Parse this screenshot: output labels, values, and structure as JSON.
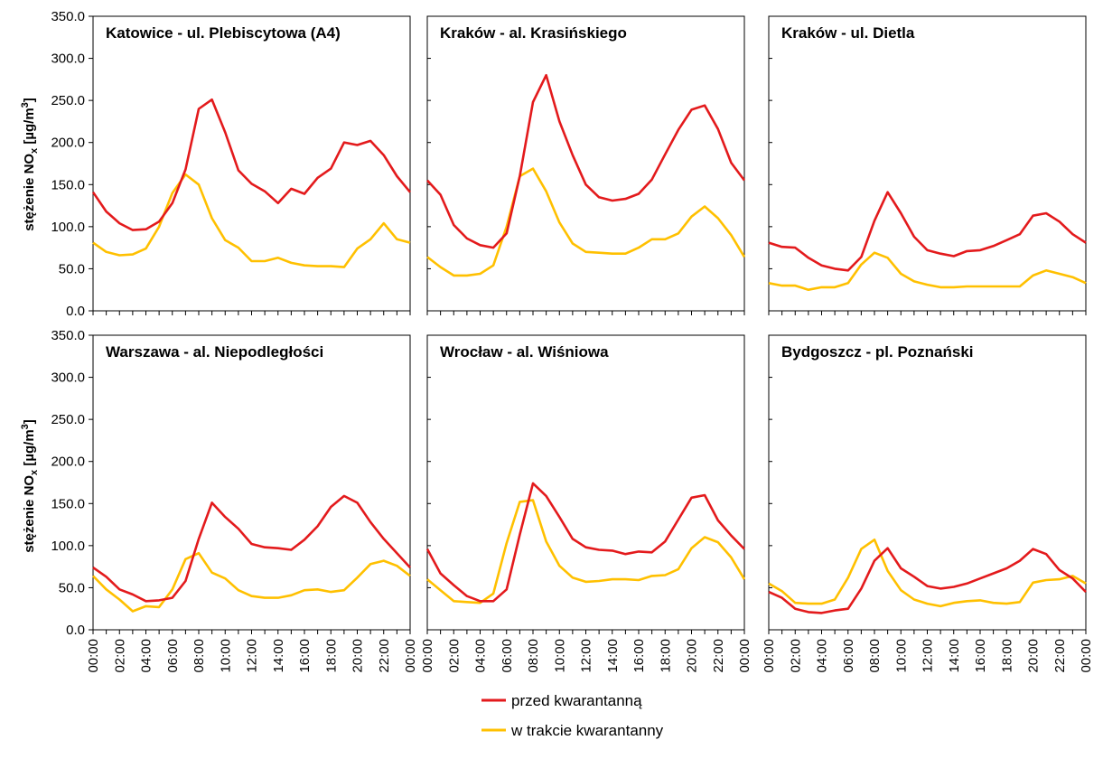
{
  "chart_data": {
    "type": "line",
    "ylim": [
      0,
      350
    ],
    "y_ticks": [
      "0.0",
      "50.0",
      "100.0",
      "150.0",
      "200.0",
      "250.0",
      "300.0",
      "350.0"
    ],
    "x_ticks": [
      "00:00",
      "02:00",
      "04:00",
      "06:00",
      "08:00",
      "10:00",
      "12:00",
      "14:00",
      "16:00",
      "18:00",
      "20:00",
      "22:00",
      "00:00"
    ],
    "x_hours": [
      0,
      1,
      2,
      3,
      4,
      5,
      6,
      7,
      8,
      9,
      10,
      11,
      12,
      13,
      14,
      15,
      16,
      17,
      18,
      19,
      20,
      21,
      22,
      23,
      24
    ],
    "ylabel": {
      "main": "stężenie NO",
      "sub": "x",
      "unit_open": " [µg/m",
      "sup": "3",
      "unit_close": "]"
    },
    "grid": false,
    "legend_position": "bottom-center",
    "series_names": [
      "przed kwarantanną",
      "w trakcie kwarantanny"
    ],
    "colors": {
      "before": "#e31a1c",
      "during": "#ffc000"
    },
    "panels": [
      {
        "title": "Katowice - ul. Plebiscytowa (A4)",
        "before": [
          141,
          118,
          104,
          96,
          97,
          106,
          128,
          168,
          240,
          251,
          212,
          167,
          151,
          142,
          128,
          145,
          139,
          158,
          169,
          200,
          197,
          202,
          185,
          160,
          141
        ],
        "during": [
          81,
          70,
          66,
          67,
          74,
          100,
          140,
          162,
          150,
          110,
          84,
          75,
          59,
          59,
          63,
          57,
          54,
          53,
          53,
          52,
          74,
          85,
          104,
          85,
          81
        ]
      },
      {
        "title": "Kraków - al. Krasińskiego",
        "before": [
          155,
          138,
          102,
          86,
          78,
          75,
          92,
          160,
          248,
          280,
          225,
          185,
          150,
          135,
          131,
          133,
          139,
          156,
          186,
          215,
          239,
          244,
          216,
          176,
          155
        ],
        "during": [
          64,
          52,
          42,
          42,
          44,
          54,
          100,
          160,
          169,
          142,
          105,
          80,
          70,
          69,
          68,
          68,
          75,
          85,
          85,
          92,
          112,
          124,
          110,
          90,
          64
        ]
      },
      {
        "title": "Kraków - ul. Dietla",
        "before": [
          81,
          76,
          75,
          63,
          54,
          50,
          48,
          64,
          107,
          141,
          116,
          88,
          72,
          68,
          65,
          71,
          72,
          77,
          84,
          91,
          113,
          116,
          106,
          91,
          81
        ],
        "during": [
          33,
          30,
          30,
          25,
          28,
          28,
          33,
          55,
          69,
          63,
          44,
          35,
          31,
          28,
          28,
          29,
          29,
          29,
          29,
          29,
          42,
          48,
          44,
          40,
          33
        ]
      },
      {
        "title": "Warszawa - al. Niepodległości",
        "before": [
          74,
          63,
          48,
          42,
          34,
          35,
          38,
          58,
          108,
          151,
          134,
          120,
          102,
          98,
          97,
          95,
          107,
          123,
          146,
          159,
          151,
          128,
          108,
          91,
          74
        ],
        "during": [
          64,
          48,
          36,
          22,
          28,
          27,
          48,
          84,
          91,
          68,
          61,
          47,
          40,
          38,
          38,
          41,
          47,
          48,
          45,
          47,
          62,
          78,
          82,
          76,
          64
        ]
      },
      {
        "title": "Wrocław - al. Wiśniowa",
        "before": [
          96,
          67,
          53,
          40,
          34,
          34,
          48,
          113,
          174,
          159,
          134,
          108,
          98,
          95,
          94,
          90,
          93,
          92,
          105,
          131,
          157,
          160,
          130,
          112,
          96
        ],
        "during": [
          60,
          47,
          34,
          33,
          32,
          43,
          103,
          152,
          154,
          105,
          76,
          62,
          57,
          58,
          60,
          60,
          59,
          64,
          65,
          72,
          97,
          110,
          104,
          86,
          60
        ]
      },
      {
        "title": "Bydgoszcz - pl. Poznański",
        "before": [
          45,
          38,
          25,
          21,
          20,
          23,
          25,
          49,
          82,
          97,
          73,
          63,
          52,
          49,
          51,
          55,
          61,
          67,
          73,
          82,
          96,
          90,
          71,
          61,
          45
        ],
        "during": [
          55,
          46,
          32,
          31,
          31,
          36,
          62,
          96,
          107,
          70,
          47,
          36,
          31,
          28,
          32,
          34,
          35,
          32,
          31,
          33,
          56,
          59,
          60,
          64,
          55
        ]
      }
    ]
  }
}
